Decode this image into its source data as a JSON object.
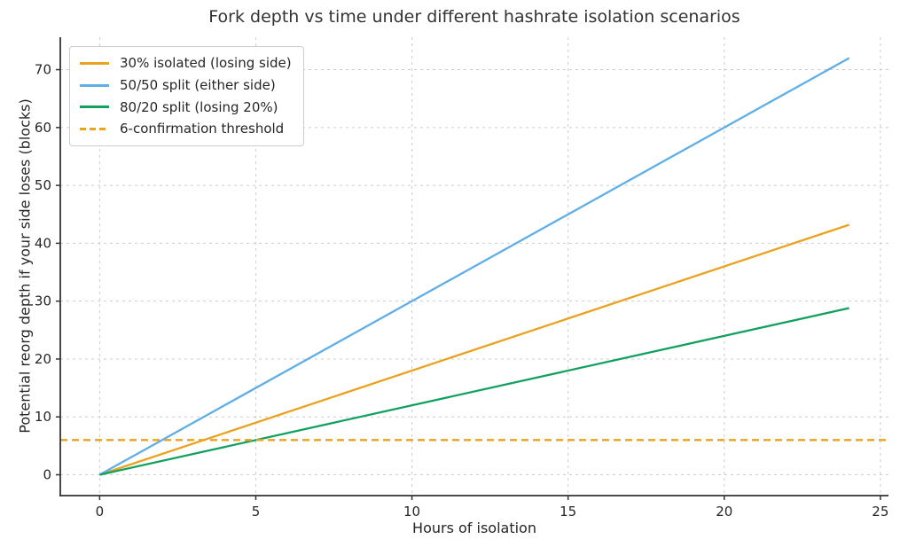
{
  "chart_data": {
    "type": "line",
    "title": "Fork depth vs time under different hashrate isolation scenarios",
    "xlabel": "Hours of isolation",
    "ylabel": "Potential reorg depth if your side loses (blocks)",
    "xlim": [
      -1.26,
      25.26
    ],
    "ylim": [
      -3.6,
      75.6
    ],
    "xticks": [
      0,
      5,
      10,
      15,
      20,
      25
    ],
    "yticks": [
      0,
      10,
      20,
      30,
      40,
      50,
      60,
      70
    ],
    "grid": true,
    "legend_position": "upper left",
    "series": [
      {
        "name": "30% isolated (losing side)",
        "color": "#EAA221",
        "style": "solid",
        "x": [
          0,
          24
        ],
        "y": [
          0,
          43.2
        ]
      },
      {
        "name": "50/50 split (either side)",
        "color": "#5FAFE6",
        "style": "solid",
        "x": [
          0,
          24
        ],
        "y": [
          0,
          72
        ]
      },
      {
        "name": "80/20 split (losing 20%)",
        "color": "#12A05F",
        "style": "solid",
        "x": [
          0,
          24
        ],
        "y": [
          0,
          28.8
        ]
      },
      {
        "name": "6-confirmation threshold",
        "color": "#EAA221",
        "style": "dashed",
        "x": [
          -1.26,
          25.26
        ],
        "y": [
          6,
          6
        ]
      }
    ],
    "colors": {
      "grid": "#cccccc",
      "spine": "#333333",
      "tick_label": "#262626",
      "title": "#333333"
    }
  }
}
